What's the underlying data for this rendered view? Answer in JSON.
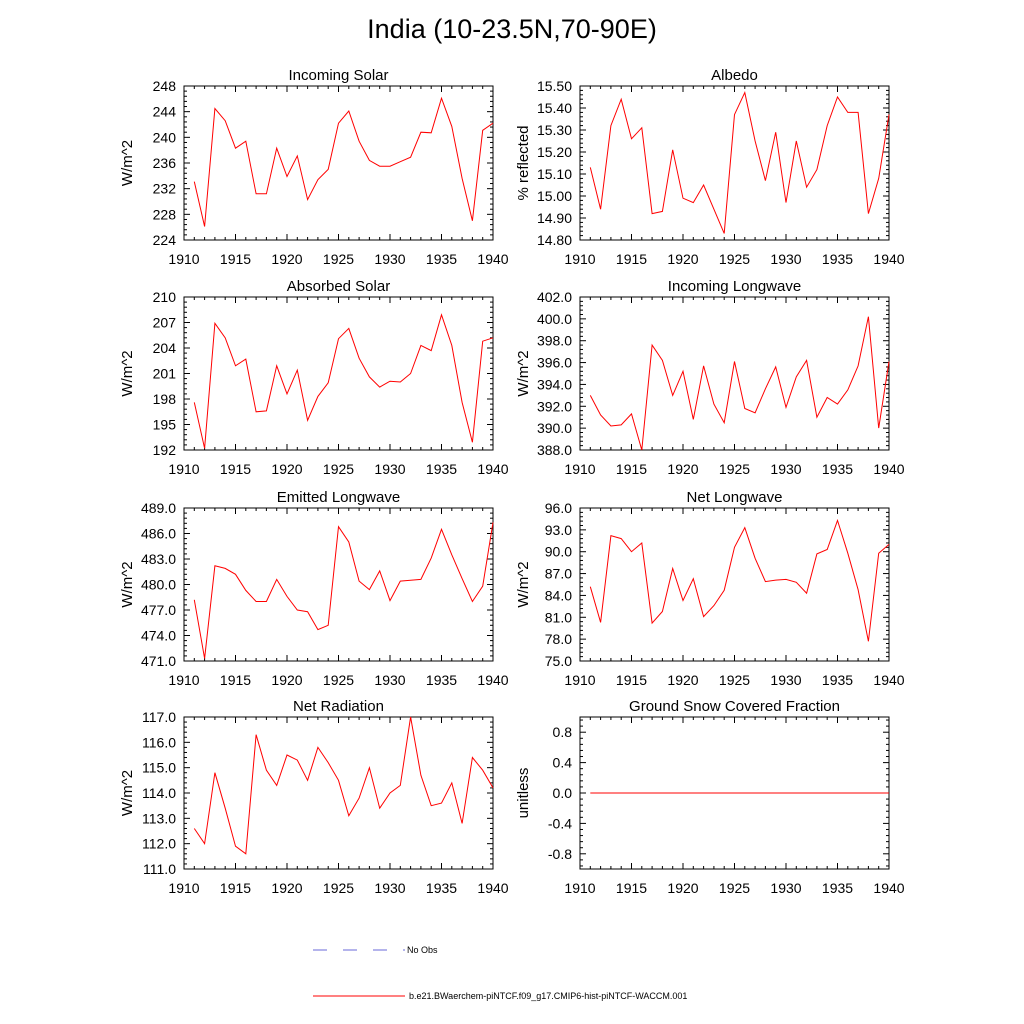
{
  "title": "India (10-23.5N,70-90E)",
  "legend": {
    "obs_label": "No Obs",
    "model_label": "b.e21.BWaerchem-piNTCF.f09_g17.CMIP6-hist-piNTCF-WACCM.001"
  },
  "colors": {
    "model": "#ff0000",
    "obs": "#6a6ad8",
    "axis": "#000000"
  },
  "chart_data": [
    {
      "type": "line",
      "title": "Incoming Solar",
      "xlabel": "",
      "ylabel": "W/m^2",
      "xlim": [
        1910,
        1940
      ],
      "ylim": [
        224,
        248
      ],
      "xticks": [
        1910,
        1915,
        1920,
        1925,
        1930,
        1935,
        1940
      ],
      "yticks": [
        224,
        228,
        232,
        236,
        240,
        244,
        248
      ],
      "ytick_labels": [
        "224",
        "228",
        "232",
        "236",
        "240",
        "244",
        "248"
      ],
      "series": [
        {
          "name": "b.e21.BWaerchem-piNTCF.f09_g17.CMIP6-hist-piNTCF-WACCM.001",
          "x": [
            1911,
            1912,
            1913,
            1914,
            1915,
            1916,
            1917,
            1918,
            1919,
            1920,
            1921,
            1922,
            1923,
            1924,
            1925,
            1926,
            1927,
            1928,
            1929,
            1930,
            1931,
            1932,
            1933,
            1934,
            1935,
            1936,
            1937,
            1938,
            1939,
            1940
          ],
          "y": [
            233.1,
            226.1,
            244.5,
            242.6,
            238.3,
            239.4,
            231.2,
            231.2,
            238.3,
            233.9,
            237.1,
            230.3,
            233.4,
            235.0,
            242.2,
            244.1,
            239.4,
            236.4,
            235.5,
            235.5,
            236.2,
            236.9,
            240.8,
            240.7,
            246.1,
            241.7,
            233.6,
            227.0,
            241.1,
            242.2
          ]
        }
      ]
    },
    {
      "type": "line",
      "title": "Albedo",
      "xlabel": "",
      "ylabel": "% reflected",
      "xlim": [
        1910,
        1940
      ],
      "ylim": [
        14.8,
        15.5
      ],
      "xticks": [
        1910,
        1915,
        1920,
        1925,
        1930,
        1935,
        1940
      ],
      "yticks": [
        14.8,
        14.9,
        15.0,
        15.1,
        15.2,
        15.3,
        15.4,
        15.5
      ],
      "ytick_labels": [
        "14.80",
        "14.90",
        "15.00",
        "15.10",
        "15.20",
        "15.30",
        "15.40",
        "15.50"
      ],
      "series": [
        {
          "name": "b.e21.BWaerchem-piNTCF.f09_g17.CMIP6-hist-piNTCF-WACCM.001",
          "x": [
            1911,
            1912,
            1913,
            1914,
            1915,
            1916,
            1917,
            1918,
            1919,
            1920,
            1921,
            1922,
            1923,
            1924,
            1925,
            1926,
            1927,
            1928,
            1929,
            1930,
            1931,
            1932,
            1933,
            1934,
            1935,
            1936,
            1937,
            1938,
            1939,
            1940
          ],
          "y": [
            15.13,
            14.94,
            15.32,
            15.44,
            15.26,
            15.31,
            14.92,
            14.93,
            15.21,
            14.99,
            14.97,
            15.05,
            14.94,
            14.83,
            15.37,
            15.47,
            15.25,
            15.07,
            15.29,
            14.97,
            15.25,
            15.04,
            15.12,
            15.32,
            15.45,
            15.38,
            15.38,
            14.92,
            15.08,
            15.37
          ]
        }
      ]
    },
    {
      "type": "line",
      "title": "Absorbed Solar",
      "xlabel": "",
      "ylabel": "W/m^2",
      "xlim": [
        1910,
        1940
      ],
      "ylim": [
        192,
        210
      ],
      "xticks": [
        1910,
        1915,
        1920,
        1925,
        1930,
        1935,
        1940
      ],
      "yticks": [
        192,
        195,
        198,
        201,
        204,
        207,
        210
      ],
      "ytick_labels": [
        "192",
        "195",
        "198",
        "201",
        "204",
        "207",
        "210"
      ],
      "series": [
        {
          "name": "b.e21.BWaerchem-piNTCF.f09_g17.CMIP6-hist-piNTCF-WACCM.001",
          "x": [
            1911,
            1912,
            1913,
            1914,
            1915,
            1916,
            1917,
            1918,
            1919,
            1920,
            1921,
            1922,
            1923,
            1924,
            1925,
            1926,
            1927,
            1928,
            1929,
            1930,
            1931,
            1932,
            1933,
            1934,
            1935,
            1936,
            1937,
            1938,
            1939,
            1940
          ],
          "y": [
            197.6,
            192.2,
            206.9,
            205.2,
            201.9,
            202.7,
            196.5,
            196.6,
            201.9,
            198.6,
            201.4,
            195.5,
            198.3,
            199.9,
            205.1,
            206.3,
            202.8,
            200.6,
            199.4,
            200.1,
            200.0,
            201.0,
            204.3,
            203.7,
            207.9,
            204.3,
            197.6,
            192.9,
            204.8,
            205.2
          ]
        }
      ]
    },
    {
      "type": "line",
      "title": "Incoming Longwave",
      "xlabel": "",
      "ylabel": "W/m^2",
      "xlim": [
        1910,
        1940
      ],
      "ylim": [
        388,
        402
      ],
      "xticks": [
        1910,
        1915,
        1920,
        1925,
        1930,
        1935,
        1940
      ],
      "yticks": [
        388,
        390,
        392,
        394,
        396,
        398,
        400,
        402
      ],
      "ytick_labels": [
        "388.0",
        "390.0",
        "392.0",
        "394.0",
        "396.0",
        "398.0",
        "400.0",
        "402.0"
      ],
      "series": [
        {
          "name": "b.e21.BWaerchem-piNTCF.f09_g17.CMIP6-hist-piNTCF-WACCM.001",
          "x": [
            1911,
            1912,
            1913,
            1914,
            1915,
            1916,
            1917,
            1918,
            1919,
            1920,
            1921,
            1922,
            1923,
            1924,
            1925,
            1926,
            1927,
            1928,
            1929,
            1930,
            1931,
            1932,
            1933,
            1934,
            1935,
            1936,
            1937,
            1938,
            1939,
            1940
          ],
          "y": [
            393.0,
            391.2,
            390.2,
            390.3,
            391.3,
            388.0,
            397.6,
            396.2,
            393.0,
            395.2,
            390.8,
            395.7,
            392.2,
            390.5,
            396.1,
            391.8,
            391.4,
            393.6,
            395.6,
            391.9,
            394.7,
            396.2,
            391.0,
            392.8,
            392.2,
            393.5,
            395.7,
            400.2,
            390.0,
            396.1
          ]
        }
      ]
    },
    {
      "type": "line",
      "title": "Emitted Longwave",
      "xlabel": "",
      "ylabel": "W/m^2",
      "xlim": [
        1910,
        1940
      ],
      "ylim": [
        471,
        489
      ],
      "xticks": [
        1910,
        1915,
        1920,
        1925,
        1930,
        1935,
        1940
      ],
      "yticks": [
        471,
        474,
        477,
        480,
        483,
        486,
        489
      ],
      "ytick_labels": [
        "471.0",
        "474.0",
        "477.0",
        "480.0",
        "483.0",
        "486.0",
        "489.0"
      ],
      "series": [
        {
          "name": "b.e21.BWaerchem-piNTCF.f09_g17.CMIP6-hist-piNTCF-WACCM.001",
          "x": [
            1911,
            1912,
            1913,
            1914,
            1915,
            1916,
            1917,
            1918,
            1919,
            1920,
            1921,
            1922,
            1923,
            1924,
            1925,
            1926,
            1927,
            1928,
            1929,
            1930,
            1931,
            1932,
            1933,
            1934,
            1935,
            1936,
            1937,
            1938,
            1939,
            1940
          ],
          "y": [
            478.2,
            471.3,
            482.2,
            481.9,
            481.2,
            479.3,
            478.0,
            478.0,
            480.6,
            478.6,
            477.0,
            476.8,
            474.7,
            475.2,
            486.8,
            485.0,
            480.4,
            479.4,
            481.6,
            478.1,
            480.4,
            480.5,
            480.6,
            483.1,
            486.5,
            483.5,
            480.7,
            478.0,
            479.8,
            487.3
          ]
        }
      ]
    },
    {
      "type": "line",
      "title": "Net Longwave",
      "xlabel": "",
      "ylabel": "W/m^2",
      "xlim": [
        1910,
        1940
      ],
      "ylim": [
        75,
        96
      ],
      "xticks": [
        1910,
        1915,
        1920,
        1925,
        1930,
        1935,
        1940
      ],
      "yticks": [
        75,
        78,
        81,
        84,
        87,
        90,
        93,
        96
      ],
      "ytick_labels": [
        "75.0",
        "78.0",
        "81.0",
        "84.0",
        "87.0",
        "90.0",
        "93.0",
        "96.0"
      ],
      "series": [
        {
          "name": "b.e21.BWaerchem-piNTCF.f09_g17.CMIP6-hist-piNTCF-WACCM.001",
          "x": [
            1911,
            1912,
            1913,
            1914,
            1915,
            1916,
            1917,
            1918,
            1919,
            1920,
            1921,
            1922,
            1923,
            1924,
            1925,
            1926,
            1927,
            1928,
            1929,
            1930,
            1931,
            1932,
            1933,
            1934,
            1935,
            1936,
            1937,
            1938,
            1939,
            1940
          ],
          "y": [
            85.2,
            80.3,
            92.2,
            91.8,
            90.0,
            91.2,
            80.2,
            81.8,
            87.7,
            83.3,
            86.3,
            81.1,
            82.6,
            84.7,
            90.6,
            93.3,
            89.1,
            85.9,
            86.1,
            86.2,
            85.8,
            84.3,
            89.7,
            90.3,
            94.3,
            89.8,
            84.8,
            77.7,
            89.8,
            91.0
          ]
        }
      ]
    },
    {
      "type": "line",
      "title": "Net Radiation",
      "xlabel": "",
      "ylabel": "W/m^2",
      "xlim": [
        1910,
        1940
      ],
      "ylim": [
        111,
        117
      ],
      "xticks": [
        1910,
        1915,
        1920,
        1925,
        1930,
        1935,
        1940
      ],
      "yticks": [
        111,
        112,
        113,
        114,
        115,
        116,
        117
      ],
      "ytick_labels": [
        "111.0",
        "112.0",
        "113.0",
        "114.0",
        "115.0",
        "116.0",
        "117.0"
      ],
      "series": [
        {
          "name": "b.e21.BWaerchem-piNTCF.f09_g17.CMIP6-hist-piNTCF-WACCM.001",
          "x": [
            1911,
            1912,
            1913,
            1914,
            1915,
            1916,
            1917,
            1918,
            1919,
            1920,
            1921,
            1922,
            1923,
            1924,
            1925,
            1926,
            1927,
            1928,
            1929,
            1930,
            1931,
            1932,
            1933,
            1934,
            1935,
            1936,
            1937,
            1938,
            1939,
            1940
          ],
          "y": [
            112.6,
            112.0,
            114.8,
            113.4,
            111.9,
            111.6,
            116.3,
            114.9,
            114.3,
            115.5,
            115.3,
            114.5,
            115.8,
            115.2,
            114.5,
            113.1,
            113.8,
            115.0,
            113.4,
            114.0,
            114.3,
            117.0,
            114.7,
            113.5,
            113.6,
            114.4,
            112.8,
            115.4,
            114.9,
            114.2
          ]
        }
      ]
    },
    {
      "type": "line",
      "title": "Ground Snow Covered Fraction",
      "xlabel": "",
      "ylabel": "unitless",
      "xlim": [
        1910,
        1940
      ],
      "ylim": [
        -1.0,
        1.0
      ],
      "xticks": [
        1910,
        1915,
        1920,
        1925,
        1930,
        1935,
        1940
      ],
      "yticks": [
        -0.8,
        -0.4,
        0.0,
        0.4,
        0.8
      ],
      "ytick_labels": [
        "-0.8",
        "-0.4",
        "0.0",
        "0.4",
        "0.8"
      ],
      "series": [
        {
          "name": "b.e21.BWaerchem-piNTCF.f09_g17.CMIP6-hist-piNTCF-WACCM.001",
          "x": [
            1911,
            1940
          ],
          "y": [
            0.0,
            0.0
          ]
        }
      ]
    }
  ]
}
